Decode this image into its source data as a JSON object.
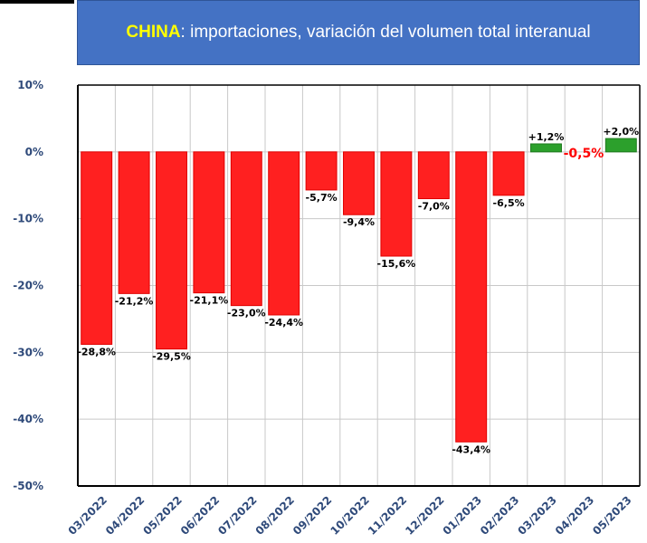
{
  "title": {
    "highlight": "CHINA",
    "rest": ": importaciones, variación del volumen total interanual",
    "highlight_color": "#ffff00",
    "background_color": "#4472c4"
  },
  "chart_data": {
    "type": "bar",
    "categories": [
      "03/2022",
      "04/2022",
      "05/2022",
      "06/2022",
      "07/2022",
      "08/2022",
      "09/2022",
      "10/2022",
      "11/2022",
      "12/2022",
      "01/2023",
      "02/2023",
      "03/2023",
      "04/2023",
      "05/2023"
    ],
    "values": [
      -28.8,
      -21.2,
      -29.5,
      -21.1,
      -23.0,
      -24.4,
      -5.7,
      -9.4,
      -15.6,
      -7.0,
      -43.4,
      -6.5,
      1.2,
      -0.5,
      2.0
    ],
    "data_labels": [
      "-28,8%",
      "-21,2%",
      "-29,5%",
      "-21,1%",
      "-23,0%",
      "-24,4%",
      "-5,7%",
      "-9,4%",
      "-15,6%",
      "-7,0%",
      "-43,4%",
      "-6,5%",
      "+1,2%",
      "-0,5%",
      "+2,0%"
    ],
    "bars_drawn": [
      true,
      true,
      true,
      true,
      true,
      true,
      true,
      true,
      true,
      true,
      true,
      true,
      true,
      false,
      true
    ],
    "yticks": [
      10,
      0,
      -10,
      -20,
      -30,
      -40,
      -50
    ],
    "ytick_labels": [
      "10%",
      "0%",
      "-10%",
      "-20%",
      "-30%",
      "-40%",
      "-50%"
    ],
    "ylim": [
      -50,
      10
    ],
    "grid": true,
    "negative_color": "#ff2020",
    "positive_color": "#2ca02c",
    "highlight_label_color": "#ff0000",
    "xlabel": "",
    "ylabel": ""
  }
}
